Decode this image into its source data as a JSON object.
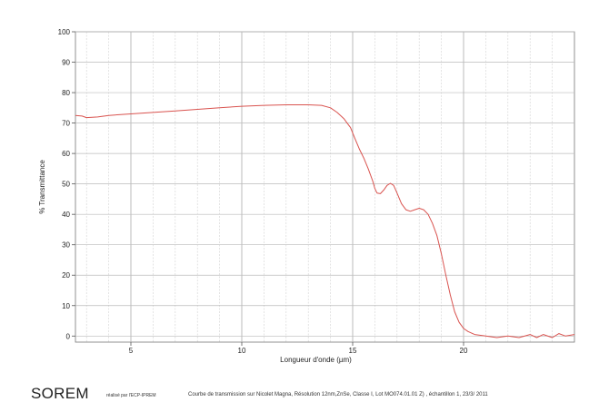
{
  "chart_data": {
    "type": "line",
    "title": "",
    "xlabel": "Longueur d'onde  (µm)",
    "ylabel": "% Transmittance",
    "xlim": [
      2.5,
      25
    ],
    "ylim": [
      -2,
      100
    ],
    "x_ticks": [
      5,
      10,
      15,
      20
    ],
    "y_ticks": [
      0,
      10,
      20,
      30,
      40,
      50,
      60,
      70,
      80,
      90,
      100
    ],
    "x_minor_step": 1,
    "grid": true,
    "line_color": "#d9534f",
    "series": [
      {
        "x": [
          2.5,
          2.8,
          3.0,
          3.5,
          4.0,
          5.0,
          6.0,
          7.0,
          8.0,
          9.0,
          10.0,
          11.0,
          12.0,
          13.0,
          13.6,
          14.0,
          14.3,
          14.6,
          14.9,
          15.1,
          15.3,
          15.5,
          15.7,
          15.9,
          16.0,
          16.1,
          16.25,
          16.4,
          16.55,
          16.7,
          16.85,
          17.0,
          17.2,
          17.4,
          17.6,
          17.8,
          18.0,
          18.2,
          18.4,
          18.6,
          18.8,
          19.0,
          19.2,
          19.4,
          19.6,
          19.8,
          20.0,
          20.2,
          20.5,
          21.0,
          21.5,
          22.0,
          22.5,
          23.0,
          23.3,
          23.6,
          24.0,
          24.3,
          24.6,
          25.0
        ],
        "y": [
          72.5,
          72.3,
          71.8,
          72.0,
          72.5,
          73.0,
          73.5,
          74.0,
          74.5,
          75.0,
          75.5,
          75.8,
          76.0,
          76.0,
          75.8,
          75.0,
          73.5,
          71.5,
          68.5,
          65.0,
          61.5,
          58.5,
          55.0,
          51.0,
          48.5,
          47.0,
          46.8,
          48.0,
          49.5,
          50.2,
          49.5,
          47.0,
          43.5,
          41.5,
          41.0,
          41.5,
          42.0,
          41.5,
          40.0,
          37.0,
          33.0,
          27.0,
          20.0,
          13.5,
          8.0,
          4.5,
          2.5,
          1.5,
          0.5,
          0.0,
          -0.5,
          0.0,
          -0.5,
          0.5,
          -0.5,
          0.5,
          -0.5,
          0.8,
          0.0,
          0.5
        ]
      }
    ]
  },
  "footer": {
    "brand": "SOREM",
    "credit": "réalisé par l'ECP-IPREM",
    "caption": "Courbe de transmission sur Nicolet Magna, Résolution 12nm,ZnSe, Classe I, Lot MO074.01.01 Z) , échantillon 1, 23/3/ 2011"
  }
}
